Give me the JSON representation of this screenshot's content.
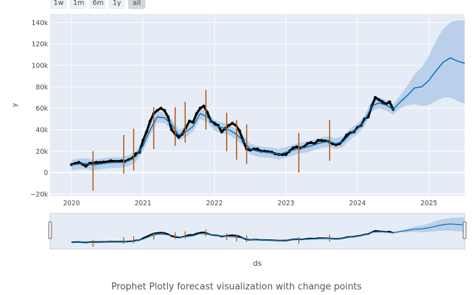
{
  "range_buttons": [
    {
      "label": "1w",
      "active": false
    },
    {
      "label": "1m",
      "active": false
    },
    {
      "label": "6m",
      "active": false
    },
    {
      "label": "1y",
      "active": false
    },
    {
      "label": "all",
      "active": true
    }
  ],
  "caption": "Prophet Plotly forecast visualization with change points",
  "colors": {
    "plot_bg": "#e5ecf6",
    "forecast_line": "#0072b2",
    "band": "#a9c5e6",
    "observed": "#000000",
    "changepoint": "#b15a17"
  },
  "chart_data": {
    "type": "line",
    "xlabel": "ds",
    "ylabel": "y",
    "xlim": [
      2019.7,
      2025.5
    ],
    "ylim": [
      -22000,
      148000
    ],
    "x_ticks": [
      {
        "value": 2020,
        "label": "2020"
      },
      {
        "value": 2021,
        "label": "2021"
      },
      {
        "value": 2022,
        "label": "2022"
      },
      {
        "value": 2023,
        "label": "2023"
      },
      {
        "value": 2024,
        "label": "2024"
      },
      {
        "value": 2025,
        "label": "2025"
      }
    ],
    "y_ticks": [
      {
        "value": -20000,
        "label": "−20k"
      },
      {
        "value": 0,
        "label": "0"
      },
      {
        "value": 20000,
        "label": "20k"
      },
      {
        "value": 40000,
        "label": "40k"
      },
      {
        "value": 60000,
        "label": "60k"
      },
      {
        "value": 80000,
        "label": "80k"
      },
      {
        "value": 100000,
        "label": "100k"
      },
      {
        "value": 120000,
        "label": "120k"
      },
      {
        "value": 140000,
        "label": "140k"
      }
    ],
    "grid": true,
    "legend": "none",
    "series": [
      {
        "kind": "forecast",
        "x": [
          2020.0,
          2020.1,
          2020.2,
          2020.3,
          2020.4,
          2020.5,
          2020.6,
          2020.7,
          2020.8,
          2020.9,
          2021.0,
          2021.1,
          2021.2,
          2021.3,
          2021.4,
          2021.5,
          2021.6,
          2021.7,
          2021.8,
          2021.9,
          2022.0,
          2022.1,
          2022.2,
          2022.3,
          2022.4,
          2022.5,
          2022.6,
          2022.7,
          2022.8,
          2022.9,
          2023.0,
          2023.1,
          2023.2,
          2023.3,
          2023.4,
          2023.5,
          2023.6,
          2023.7,
          2023.8,
          2023.9,
          2024.0,
          2024.1,
          2024.2,
          2024.3,
          2024.4,
          2024.5,
          2024.6,
          2024.7,
          2024.8,
          2024.9,
          2025.0,
          2025.1,
          2025.2,
          2025.3,
          2025.4,
          2025.5
        ],
        "y": [
          7000,
          8000,
          8500,
          7000,
          8000,
          9000,
          9500,
          9500,
          11000,
          15000,
          25000,
          40000,
          52000,
          51000,
          45000,
          35000,
          38000,
          43000,
          55000,
          52000,
          44000,
          42000,
          40000,
          36000,
          30000,
          22000,
          20000,
          19000,
          18500,
          17000,
          19000,
          21000,
          23000,
          24000,
          26000,
          28000,
          29000,
          27000,
          29000,
          36000,
          41000,
          48000,
          62000,
          65000,
          63000,
          59000,
          66000,
          72000,
          79000,
          80000,
          86000,
          95000,
          103000,
          107000,
          104000,
          102000
        ],
        "lower": [
          2000,
          3000,
          3500,
          2000,
          3000,
          4000,
          4500,
          4500,
          6000,
          10000,
          20000,
          35000,
          47000,
          46000,
          40000,
          30000,
          33000,
          38000,
          50000,
          47000,
          39000,
          37000,
          35000,
          31000,
          25000,
          17000,
          15000,
          14000,
          13500,
          12000,
          14000,
          16000,
          18000,
          19000,
          21000,
          23000,
          24000,
          22000,
          24000,
          31000,
          36000,
          43000,
          57000,
          60000,
          58000,
          54000,
          60000,
          63000,
          64000,
          62000,
          63000,
          67000,
          70000,
          70000,
          67000,
          64000
        ],
        "upper": [
          12000,
          13000,
          13500,
          12000,
          13000,
          14000,
          14500,
          14500,
          16000,
          20000,
          30000,
          45000,
          57000,
          56000,
          50000,
          40000,
          43000,
          48000,
          60000,
          57000,
          49000,
          47000,
          45000,
          41000,
          35000,
          27000,
          25000,
          24000,
          23500,
          22000,
          24000,
          26000,
          28000,
          29000,
          31000,
          33000,
          34000,
          32000,
          34000,
          41000,
          46000,
          53000,
          67000,
          70000,
          68000,
          64000,
          72000,
          81000,
          92000,
          98000,
          109000,
          123000,
          134000,
          140000,
          142000,
          142000
        ]
      },
      {
        "kind": "observed",
        "x": [
          2020.0,
          2020.05,
          2020.1,
          2020.15,
          2020.2,
          2020.25,
          2020.3,
          2020.35,
          2020.4,
          2020.45,
          2020.5,
          2020.55,
          2020.6,
          2020.65,
          2020.7,
          2020.75,
          2020.8,
          2020.85,
          2020.9,
          2020.95,
          2021.0,
          2021.05,
          2021.1,
          2021.15,
          2021.2,
          2021.25,
          2021.3,
          2021.35,
          2021.4,
          2021.45,
          2021.5,
          2021.55,
          2021.6,
          2021.65,
          2021.7,
          2021.75,
          2021.8,
          2021.85,
          2021.9,
          2021.95,
          2022.0,
          2022.05,
          2022.1,
          2022.15,
          2022.2,
          2022.25,
          2022.3,
          2022.35,
          2022.4,
          2022.45,
          2022.5,
          2022.55,
          2022.6,
          2022.65,
          2022.7,
          2022.75,
          2022.8,
          2022.85,
          2022.9,
          2022.95,
          2023.0,
          2023.05,
          2023.1,
          2023.15,
          2023.2,
          2023.25,
          2023.3,
          2023.35,
          2023.4,
          2023.45,
          2023.5,
          2023.55,
          2023.6,
          2023.65,
          2023.7,
          2023.75,
          2023.8,
          2023.85,
          2023.9,
          2023.95,
          2024.0,
          2024.05,
          2024.1,
          2024.15,
          2024.2,
          2024.25,
          2024.3,
          2024.35,
          2024.4,
          2024.45,
          2024.5
        ],
        "y": [
          7500,
          8500,
          9500,
          8000,
          6000,
          8500,
          9000,
          9500,
          9500,
          9800,
          10000,
          11000,
          10500,
          10500,
          11000,
          10500,
          12000,
          13500,
          17500,
          19000,
          30000,
          38000,
          48000,
          55000,
          58000,
          60000,
          58000,
          52000,
          40000,
          36000,
          33000,
          36000,
          42000,
          48000,
          47000,
          55000,
          60000,
          62000,
          56000,
          48000,
          46000,
          44000,
          38000,
          41000,
          44000,
          46000,
          44000,
          39000,
          30000,
          22000,
          21000,
          22000,
          22000,
          20000,
          20000,
          19500,
          19000,
          17500,
          17000,
          16800,
          17000,
          20000,
          23000,
          24000,
          23000,
          24000,
          27000,
          28000,
          27000,
          30000,
          30000,
          29500,
          29000,
          27000,
          26000,
          27000,
          30000,
          35000,
          37000,
          38000,
          42000,
          44000,
          50000,
          52000,
          62000,
          70000,
          68000,
          66000,
          64000,
          66000,
          59000
        ]
      }
    ],
    "changepoints": [
      {
        "x": 2020.3,
        "y_low": -17000,
        "y_high": 20000
      },
      {
        "x": 2020.73,
        "y_low": -1000,
        "y_high": 35000
      },
      {
        "x": 2020.87,
        "y_low": 2000,
        "y_high": 41000
      },
      {
        "x": 2021.15,
        "y_low": 22000,
        "y_high": 61000
      },
      {
        "x": 2021.45,
        "y_low": 25000,
        "y_high": 61000
      },
      {
        "x": 2021.59,
        "y_low": 28000,
        "y_high": 66000
      },
      {
        "x": 2021.88,
        "y_low": 40000,
        "y_high": 77000
      },
      {
        "x": 2022.17,
        "y_low": 20000,
        "y_high": 56000
      },
      {
        "x": 2022.31,
        "y_low": 12000,
        "y_high": 49000
      },
      {
        "x": 2022.45,
        "y_low": 8000,
        "y_high": 45000
      },
      {
        "x": 2023.18,
        "y_low": 0,
        "y_high": 37000
      },
      {
        "x": 2023.61,
        "y_low": 11000,
        "y_high": 49000
      }
    ]
  }
}
